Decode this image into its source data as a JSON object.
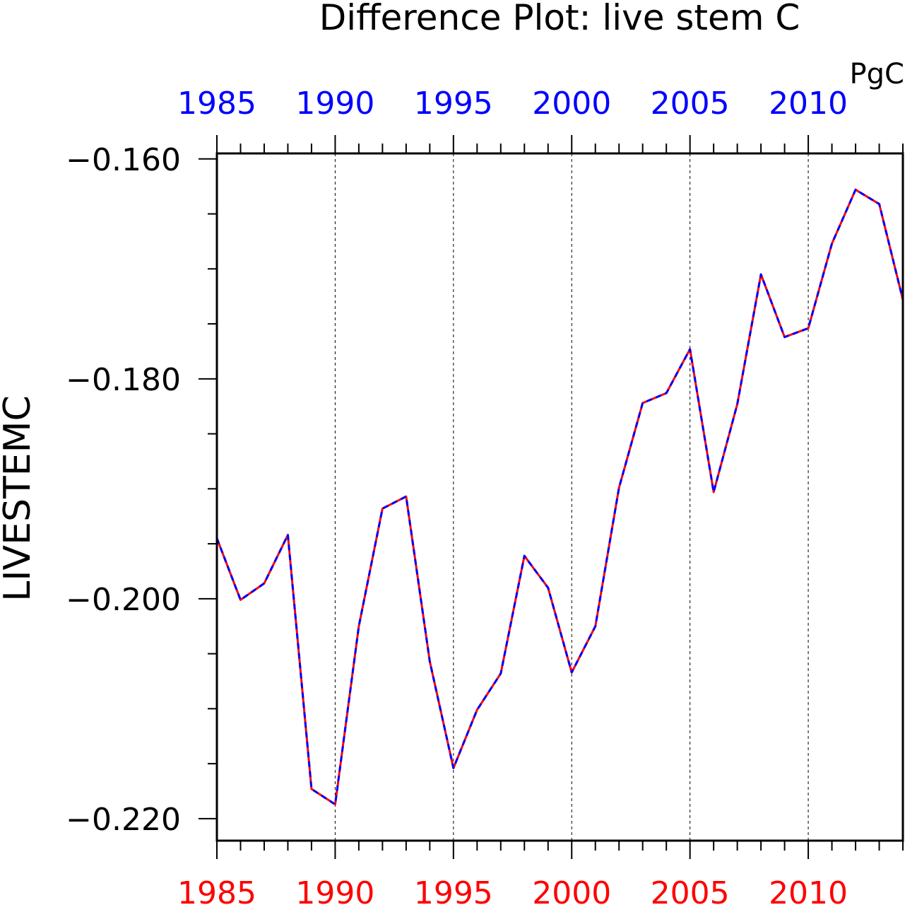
{
  "chart_data": {
    "type": "line",
    "title": "Difference Plot: live stem C",
    "units": "PgC",
    "ylabel": "LIVESTEMC",
    "xlabel": "",
    "xlim": [
      1985,
      2014
    ],
    "ylim": [
      -0.222,
      -0.1595
    ],
    "grid": "vertical-dashed",
    "x_ticks_major": [
      1985,
      1990,
      1995,
      2000,
      2005,
      2010
    ],
    "x_tick_labels_bottom": [
      "1985",
      "1990",
      "1995",
      "2000",
      "2005",
      "2010"
    ],
    "x_tick_labels_top": [
      "1985",
      "1990",
      "1995",
      "2000",
      "2005",
      "2010"
    ],
    "y_ticks_major": [
      -0.16,
      -0.18,
      -0.2,
      -0.22
    ],
    "y_tick_labels": [
      "−0.160",
      "−0.180",
      "−0.200",
      "−0.220"
    ],
    "colors": {
      "bottom_axis": "#ff0000",
      "top_axis": "#0000ff",
      "axis": "#000000"
    },
    "x": [
      1985,
      1986,
      1987,
      1988,
      1989,
      1990,
      1991,
      1992,
      1993,
      1994,
      1995,
      1996,
      1997,
      1998,
      1999,
      2000,
      2001,
      2002,
      2003,
      2004,
      2005,
      2006,
      2007,
      2008,
      2009,
      2010,
      2011,
      2012,
      2013,
      2014
    ],
    "series": [
      {
        "color": "#ff0000",
        "style": "solid",
        "values": [
          -0.1945,
          -0.2001,
          -0.1986,
          -0.1942,
          -0.2173,
          -0.2187,
          -0.2025,
          -0.1918,
          -0.1907,
          -0.2057,
          -0.2154,
          -0.2101,
          -0.2068,
          -0.1961,
          -0.199,
          -0.2067,
          -0.2025,
          -0.1899,
          -0.1822,
          -0.1813,
          -0.1773,
          -0.1903,
          -0.1823,
          -0.1705,
          -0.1762,
          -0.1754,
          -0.1677,
          -0.1628,
          -0.1641,
          -0.1728
        ]
      },
      {
        "color": "#0000ff",
        "style": "dashed",
        "values": [
          -0.1945,
          -0.2001,
          -0.1986,
          -0.1942,
          -0.2173,
          -0.2187,
          -0.2025,
          -0.1918,
          -0.1907,
          -0.2057,
          -0.2154,
          -0.2101,
          -0.2068,
          -0.1961,
          -0.199,
          -0.2067,
          -0.2025,
          -0.1899,
          -0.1822,
          -0.1813,
          -0.1773,
          -0.1903,
          -0.1823,
          -0.1705,
          -0.1762,
          -0.1754,
          -0.1677,
          -0.1628,
          -0.1641,
          -0.1728
        ]
      }
    ]
  }
}
